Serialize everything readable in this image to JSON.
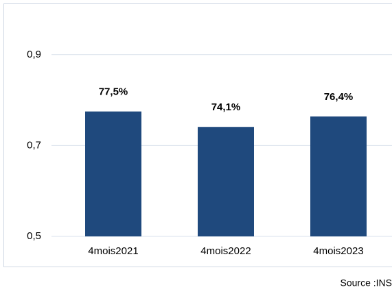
{
  "chart_data": {
    "type": "bar",
    "categories": [
      "4mois2021",
      "4mois2022",
      "4mois2023"
    ],
    "values": [
      0.775,
      0.741,
      0.764
    ],
    "value_labels": [
      "77,5%",
      "74,1%",
      "76,4%"
    ],
    "color": "#1f497d",
    "ylim": [
      0.5,
      1.0
    ],
    "yticks": [
      {
        "value": 0.5,
        "label": "0,5"
      },
      {
        "value": 0.7,
        "label": "0,7"
      },
      {
        "value": 0.9,
        "label": "0,9"
      }
    ],
    "grid": true,
    "source": "Source :INS"
  }
}
